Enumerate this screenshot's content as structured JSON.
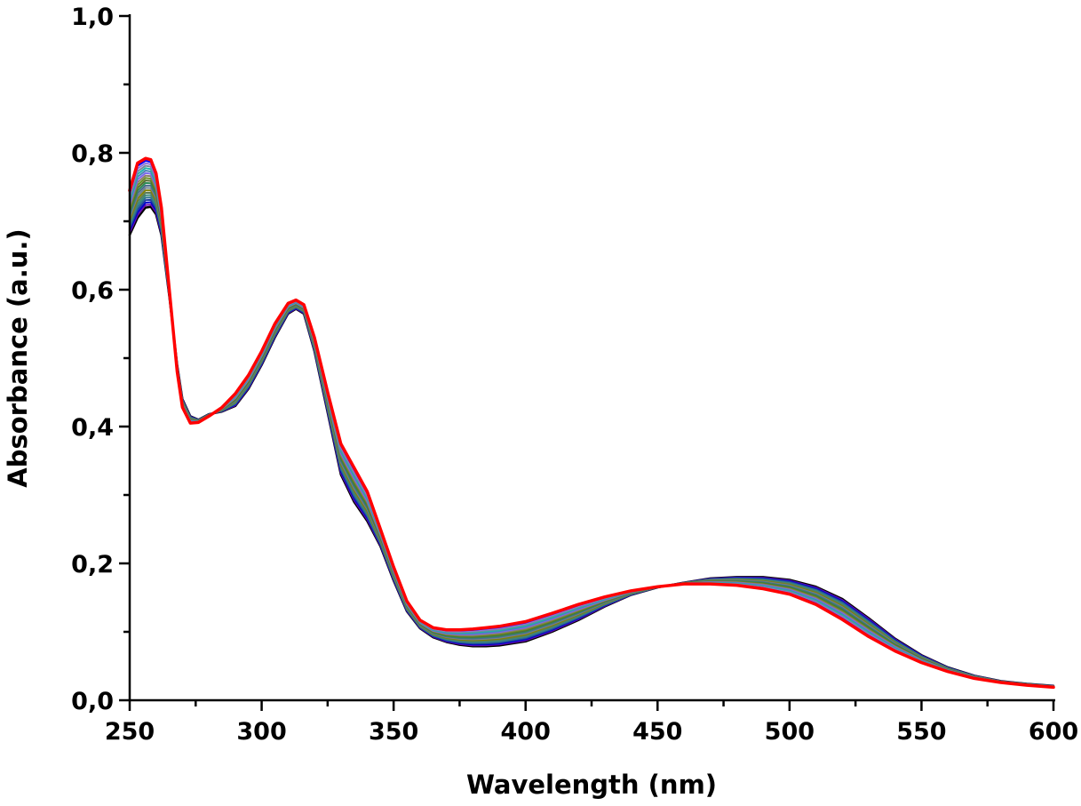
{
  "chart_data": {
    "type": "line",
    "title": "",
    "xlabel": "Wavelength (nm)",
    "ylabel": "Absorbance (a.u.)",
    "xlim": [
      250,
      600
    ],
    "ylim": [
      0,
      1.0
    ],
    "x_ticks": [
      "250",
      "300",
      "350",
      "400",
      "450",
      "500",
      "550",
      "600"
    ],
    "x_tick_values": [
      250,
      300,
      350,
      400,
      450,
      500,
      550,
      600
    ],
    "x_minor_step": 25,
    "y_ticks": [
      "0,0",
      "0,2",
      "0,4",
      "0,6",
      "0,8",
      "1,0"
    ],
    "y_tick_values": [
      0,
      0.2,
      0.4,
      0.6,
      0.8,
      1.0
    ],
    "y_minor_step": 0.1,
    "grid": false,
    "legend": "none",
    "series_count": 21,
    "series_colors": [
      "#000000",
      "#6a0dad",
      "#0000cd",
      "#1e3fa0",
      "#2f6f8f",
      "#3a8a7a",
      "#5a7a5a",
      "#808000",
      "#708090",
      "#4b6b8b",
      "#2e8b57",
      "#556b2f",
      "#6b8e23",
      "#8b7d6b",
      "#7b68ee",
      "#4682b4",
      "#20b2aa",
      "#778899",
      "#9370db",
      "#0000ff",
      "#ff0000"
    ],
    "x": [
      250,
      253,
      256,
      258,
      260,
      262,
      265,
      268,
      270,
      273,
      276,
      280,
      285,
      290,
      295,
      300,
      305,
      310,
      313,
      316,
      320,
      325,
      330,
      335,
      340,
      345,
      350,
      355,
      360,
      365,
      370,
      375,
      380,
      385,
      390,
      400,
      410,
      420,
      430,
      440,
      450,
      460,
      470,
      480,
      490,
      500,
      510,
      520,
      530,
      540,
      550,
      560,
      570,
      580,
      590,
      600
    ],
    "series_first": [
      0.68,
      0.705,
      0.72,
      0.721,
      0.71,
      0.68,
      0.59,
      0.49,
      0.44,
      0.415,
      0.41,
      0.418,
      0.422,
      0.43,
      0.455,
      0.49,
      0.53,
      0.565,
      0.572,
      0.565,
      0.51,
      0.42,
      0.33,
      0.29,
      0.262,
      0.225,
      0.175,
      0.13,
      0.105,
      0.092,
      0.085,
      0.081,
      0.079,
      0.079,
      0.08,
      0.086,
      0.1,
      0.117,
      0.137,
      0.154,
      0.165,
      0.172,
      0.178,
      0.18,
      0.18,
      0.176,
      0.166,
      0.148,
      0.12,
      0.09,
      0.066,
      0.048,
      0.036,
      0.028,
      0.024,
      0.021
    ],
    "series_last": [
      0.745,
      0.785,
      0.792,
      0.79,
      0.77,
      0.72,
      0.6,
      0.48,
      0.428,
      0.405,
      0.406,
      0.415,
      0.428,
      0.448,
      0.475,
      0.51,
      0.55,
      0.58,
      0.585,
      0.578,
      0.53,
      0.45,
      0.375,
      0.34,
      0.305,
      0.25,
      0.195,
      0.145,
      0.117,
      0.106,
      0.103,
      0.103,
      0.104,
      0.106,
      0.108,
      0.115,
      0.127,
      0.14,
      0.151,
      0.16,
      0.166,
      0.17,
      0.17,
      0.168,
      0.163,
      0.155,
      0.14,
      0.118,
      0.093,
      0.072,
      0.055,
      0.042,
      0.032,
      0.026,
      0.022,
      0.019
    ]
  }
}
